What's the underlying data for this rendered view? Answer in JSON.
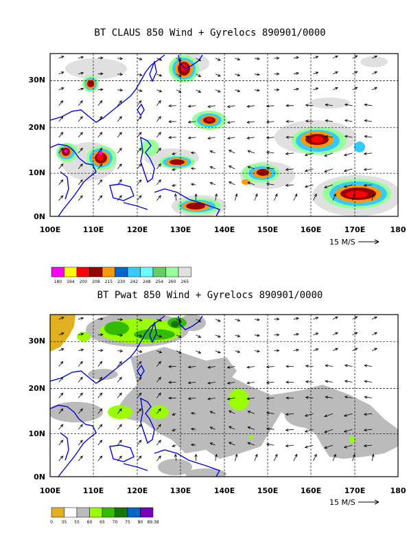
{
  "panel_top": {
    "title": "BT CLAUS 850 Wind + Gyrelocs 890901/0000",
    "x_ticks": [
      "100E",
      "110E",
      "120E",
      "130E",
      "140E",
      "150E",
      "160E",
      "170E",
      "180"
    ],
    "y_ticks": [
      "30N",
      "20N",
      "10N",
      "0N"
    ],
    "ref_vector": "15 M/S",
    "colorbar": {
      "colors": [
        "#ff00ff",
        "#ffff00",
        "#ff0000",
        "#990000",
        "#ff9900",
        "#0066cc",
        "#33ccff",
        "#66ffff",
        "#66cc66",
        "#99ff99",
        "#e0e0e0"
      ],
      "labels": [
        "180",
        "194",
        "200",
        "208",
        "215",
        "230",
        "242",
        "248",
        "254",
        "260",
        "265"
      ]
    }
  },
  "panel_bottom": {
    "title": "BT Pwat 850 Wind + Gyrelocs 890901/0000",
    "x_ticks": [
      "100E",
      "110E",
      "120E",
      "130E",
      "140E",
      "150E",
      "160E",
      "170E",
      "180"
    ],
    "y_ticks": [
      "30N",
      "20N",
      "10N",
      "0N"
    ],
    "ref_vector": "15 M/S",
    "colorbar": {
      "colors": [
        "#e0b020",
        "#ffffff",
        "#bbbbbb",
        "#99ff00",
        "#33bb00",
        "#117700",
        "#0066cc",
        "#7700bb"
      ],
      "labels": [
        "0",
        "35",
        "55",
        "60",
        "65",
        "70",
        "75",
        "80",
        "89.38"
      ]
    }
  }
}
